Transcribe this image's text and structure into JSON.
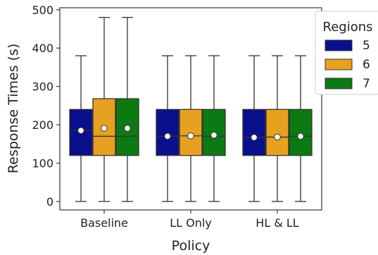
{
  "chart_data": {
    "type": "box",
    "title": "",
    "xlabel": "Policy",
    "ylabel": "Response Times (s)",
    "ylim": [
      -15,
      515
    ],
    "yticks": [
      0,
      100,
      200,
      300,
      400,
      500
    ],
    "ytick_labels": [
      "0",
      "100",
      "200",
      "300",
      "400",
      "500"
    ],
    "categories": [
      "Baseline",
      "LL Only",
      "HL & LL"
    ],
    "legend": {
      "title": "Regions",
      "placement": "top-right, outside plot"
    },
    "grid": false,
    "series": [
      {
        "name": "5",
        "color": "#0a0f8c",
        "boxes": [
          {
            "min": 0,
            "q1": 120,
            "median": 185,
            "q3": 240,
            "max": 380,
            "mean": 185
          },
          {
            "min": 0,
            "q1": 120,
            "median": 170,
            "q3": 240,
            "max": 380,
            "mean": 170
          },
          {
            "min": 0,
            "q1": 120,
            "median": 167,
            "q3": 240,
            "max": 380,
            "mean": 167
          }
        ]
      },
      {
        "name": "6",
        "color": "#e8a020",
        "boxes": [
          {
            "min": 0,
            "q1": 120,
            "median": 170,
            "q3": 268,
            "max": 480,
            "mean": 191
          },
          {
            "min": 0,
            "q1": 120,
            "median": 171,
            "q3": 240,
            "max": 380,
            "mean": 171
          },
          {
            "min": 0,
            "q1": 120,
            "median": 168,
            "q3": 240,
            "max": 380,
            "mean": 168
          }
        ]
      },
      {
        "name": "7",
        "color": "#0b7a12",
        "boxes": [
          {
            "min": 0,
            "q1": 120,
            "median": 170,
            "q3": 268,
            "max": 480,
            "mean": 191
          },
          {
            "min": 0,
            "q1": 120,
            "median": 170,
            "q3": 240,
            "max": 380,
            "mean": 173
          },
          {
            "min": 0,
            "q1": 120,
            "median": 170,
            "q3": 240,
            "max": 380,
            "mean": 170
          }
        ]
      }
    ]
  }
}
